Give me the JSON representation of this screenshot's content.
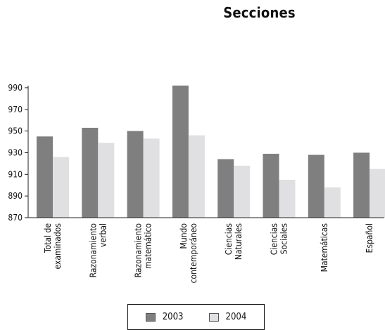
{
  "chart_data": {
    "type": "bar",
    "title": "Secciones",
    "xlabel": "",
    "ylabel": "",
    "ylim": [
      870,
      990
    ],
    "yticks": [
      870,
      890,
      910,
      930,
      950,
      970,
      990
    ],
    "grid": false,
    "legend_position": "bottom",
    "categories": [
      [
        "Total de",
        "examinados"
      ],
      [
        "Razonamiento",
        "verbal"
      ],
      [
        "Razonamiento",
        "matemático"
      ],
      [
        "Mundo",
        "contemporáneo"
      ],
      [
        "Ciencias",
        "Naturales"
      ],
      [
        "Ciencias",
        "Sociales"
      ],
      [
        "Matemáticas"
      ],
      [
        "Español"
      ]
    ],
    "series": [
      {
        "name": "2003",
        "color": "#7f7f7f",
        "values": [
          945,
          953,
          950,
          992,
          924,
          929,
          928,
          930
        ]
      },
      {
        "name": "2004",
        "color": "#e0e0e2",
        "values": [
          926,
          939,
          943,
          946,
          918,
          905,
          898,
          915
        ]
      }
    ]
  }
}
